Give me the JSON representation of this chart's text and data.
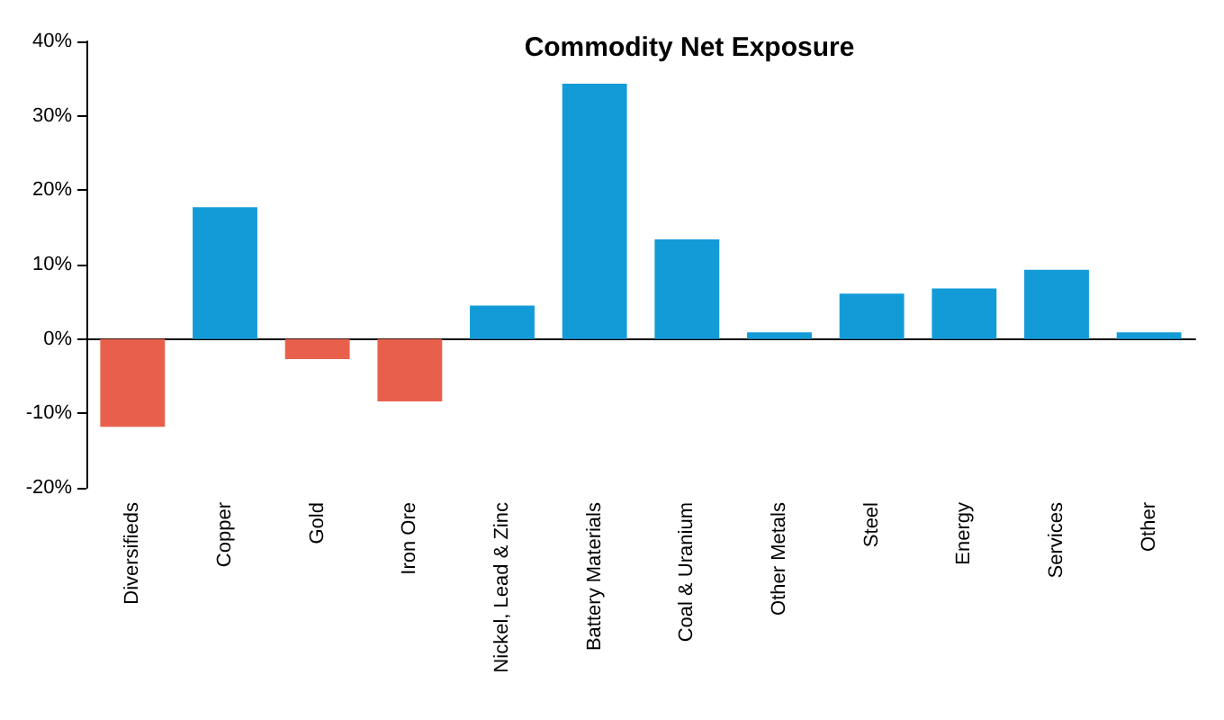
{
  "chart_data": {
    "type": "bar",
    "title": "Commodity Net Exposure",
    "categories": [
      "Diversifieds",
      "Copper",
      "Gold",
      "Iron Ore",
      "Nickel, Lead & Zinc",
      "Battery Materials",
      "Coal & Uranium",
      "Other Metals",
      "Steel",
      "Energy",
      "Services",
      "Other"
    ],
    "values": [
      -11.8,
      17.7,
      -2.7,
      -8.4,
      4.5,
      34.3,
      13.4,
      0.9,
      6.1,
      6.8,
      9.3,
      0.9
    ],
    "colors": [
      "#e8604c",
      "#139bd8",
      "#e8604c",
      "#e8604c",
      "#139bd8",
      "#139bd8",
      "#139bd8",
      "#139bd8",
      "#139bd8",
      "#139bd8",
      "#139bd8",
      "#139bd8"
    ],
    "ylim": [
      -20,
      40
    ],
    "yticks": [
      {
        "value": -20,
        "label": "-20%"
      },
      {
        "value": -10,
        "label": "-10%"
      },
      {
        "value": 0,
        "label": "0%"
      },
      {
        "value": 10,
        "label": "10%"
      },
      {
        "value": 20,
        "label": "20%"
      },
      {
        "value": 30,
        "label": "30%"
      },
      {
        "value": 40,
        "label": "40%"
      }
    ],
    "data_labels": false
  }
}
